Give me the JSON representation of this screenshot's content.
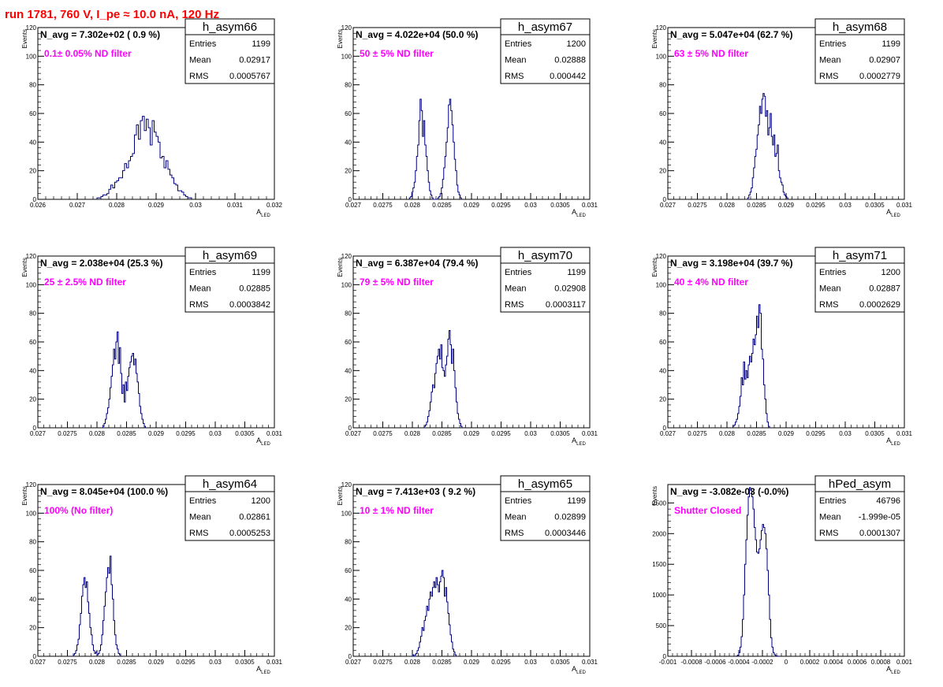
{
  "page": {
    "title": "run 1781,   760 V, I_pe ≈ 10.0 nA, 120 Hz"
  },
  "style": {
    "histogram_color": "#000080",
    "annotation_color": "#ff00ff",
    "title_color": "#ff0000"
  },
  "chart_data": [
    {
      "type": "histogram",
      "name": "h_asym66",
      "navg": "N_avg = 7.302e+02 ( 0.9 %)",
      "filter": "0.1± 0.05% ND filter",
      "stats": {
        "entries": "1199",
        "mean": "0.02917",
        "rms": "0.0005767"
      },
      "xlabel": "A_LED",
      "ylabel": "Events",
      "xlim": [
        0.026,
        0.032
      ],
      "ylim": [
        0,
        120
      ],
      "xticks": [
        0.026,
        0.027,
        0.028,
        0.029,
        0.03,
        0.031,
        0.032
      ],
      "xtick_labels": [
        "0.026",
        "0.027",
        "0.028",
        "0.029",
        "0.03",
        "0.031",
        "0.032"
      ],
      "yticks": [
        0,
        20,
        40,
        60,
        80,
        100,
        120
      ],
      "ytick_labels": [
        "0",
        "20",
        "40",
        "60",
        "80",
        "100",
        "120"
      ],
      "bins": {
        "start": 0.0275,
        "width": 5e-05,
        "counts": [
          1,
          1,
          2,
          3,
          3,
          4,
          7,
          10,
          8,
          12,
          13,
          15,
          15,
          20,
          25,
          22,
          27,
          30,
          32,
          45,
          52,
          42,
          55,
          58,
          48,
          56,
          50,
          38,
          55,
          47,
          44,
          40,
          29,
          30,
          22,
          27,
          21,
          17,
          15,
          11,
          10,
          6,
          6,
          5,
          3,
          2,
          1,
          1
        ]
      }
    },
    {
      "type": "histogram",
      "name": "h_asym67",
      "navg": "N_avg = 4.022e+04 (50.0 %)",
      "filter": "50 ± 5% ND filter",
      "stats": {
        "entries": "1200",
        "mean": "0.02888",
        "rms": "0.000442"
      },
      "xlabel": "A_LED",
      "ylabel": "Events",
      "xlim": [
        0.027,
        0.031
      ],
      "ylim": [
        0,
        120
      ],
      "xticks": [
        0.027,
        0.0275,
        0.028,
        0.0285,
        0.029,
        0.0295,
        0.03,
        0.0305,
        0.031
      ],
      "xtick_labels": [
        "0.027",
        "0.0275",
        "0.028",
        "0.0285",
        "0.029",
        "0.0295",
        "0.03",
        "0.0305",
        "0.031"
      ],
      "yticks": [
        0,
        20,
        40,
        60,
        80,
        100,
        120
      ],
      "ytick_labels": [
        "0",
        "20",
        "40",
        "60",
        "80",
        "100",
        "120"
      ],
      "bins": {
        "start": 0.02795,
        "width": 2e-05,
        "counts": [
          1,
          2,
          5,
          8,
          12,
          20,
          30,
          38,
          55,
          70,
          62,
          44,
          55,
          38,
          30,
          20,
          12,
          6,
          3,
          1,
          0,
          0,
          0,
          0,
          1,
          2,
          4,
          8,
          14,
          22,
          30,
          40,
          50,
          66,
          70,
          62,
          52,
          40,
          28,
          20,
          10,
          5,
          3,
          1
        ]
      }
    },
    {
      "type": "histogram",
      "name": "h_asym68",
      "navg": "N_avg = 5.047e+04 (62.7 %)",
      "filter": "63 ± 5% ND filter",
      "stats": {
        "entries": "1199",
        "mean": "0.02907",
        "rms": "0.0002779"
      },
      "xlabel": "A_LED",
      "ylabel": "Events",
      "xlim": [
        0.027,
        0.031
      ],
      "ylim": [
        0,
        120
      ],
      "xticks": [
        0.027,
        0.0275,
        0.028,
        0.0285,
        0.029,
        0.0295,
        0.03,
        0.0305,
        0.031
      ],
      "xtick_labels": [
        "0.027",
        "0.0275",
        "0.028",
        "0.0285",
        "0.029",
        "0.0295",
        "0.03",
        "0.0305",
        "0.031"
      ],
      "yticks": [
        0,
        20,
        40,
        60,
        80,
        100,
        120
      ],
      "ytick_labels": [
        "0",
        "20",
        "40",
        "60",
        "80",
        "100",
        "120"
      ],
      "bins": {
        "start": 0.02835,
        "width": 2e-05,
        "counts": [
          1,
          3,
          5,
          8,
          15,
          22,
          30,
          35,
          45,
          52,
          65,
          60,
          70,
          74,
          72,
          58,
          62,
          45,
          50,
          60,
          44,
          38,
          45,
          30,
          32,
          38,
          20,
          15,
          12,
          10,
          5,
          3,
          2,
          1
        ]
      }
    },
    {
      "type": "histogram",
      "name": "h_asym69",
      "navg": "N_avg = 2.038e+04 (25.3 %)",
      "filter": "25 ± 2.5% ND filter",
      "stats": {
        "entries": "1199",
        "mean": "0.02885",
        "rms": "0.0003842"
      },
      "xlabel": "A_LED",
      "ylabel": "Events",
      "xlim": [
        0.027,
        0.031
      ],
      "ylim": [
        0,
        120
      ],
      "xticks": [
        0.027,
        0.0275,
        0.028,
        0.0285,
        0.029,
        0.0295,
        0.03,
        0.0305,
        0.031
      ],
      "xtick_labels": [
        "0.027",
        "0.0275",
        "0.028",
        "0.0285",
        "0.029",
        "0.0295",
        "0.03",
        "0.0305",
        "0.031"
      ],
      "yticks": [
        0,
        20,
        40,
        60,
        80,
        100,
        120
      ],
      "ytick_labels": [
        "0",
        "20",
        "40",
        "60",
        "80",
        "100",
        "120"
      ],
      "bins": {
        "start": 0.0281,
        "width": 2e-05,
        "counts": [
          1,
          3,
          6,
          10,
          14,
          20,
          28,
          36,
          44,
          55,
          48,
          60,
          67,
          45,
          56,
          38,
          24,
          30,
          18,
          32,
          26,
          36,
          42,
          46,
          50,
          52,
          44,
          48,
          38,
          32,
          24,
          15,
          10,
          6,
          3,
          1
        ]
      }
    },
    {
      "type": "histogram",
      "name": "h_asym70",
      "navg": "N_avg = 6.387e+04 (79.4 %)",
      "filter": "79 ± 5% ND filter",
      "stats": {
        "entries": "1199",
        "mean": "0.02908",
        "rms": "0.0003117"
      },
      "xlabel": "A_LED",
      "ylabel": "Events",
      "xlim": [
        0.027,
        0.031
      ],
      "ylim": [
        0,
        120
      ],
      "xticks": [
        0.027,
        0.0275,
        0.028,
        0.0285,
        0.029,
        0.0295,
        0.03,
        0.0305,
        0.031
      ],
      "xtick_labels": [
        "0.027",
        "0.0275",
        "0.028",
        "0.0285",
        "0.029",
        "0.0295",
        "0.03",
        "0.0305",
        "0.031"
      ],
      "yticks": [
        0,
        20,
        40,
        60,
        80,
        100,
        120
      ],
      "ytick_labels": [
        "0",
        "20",
        "40",
        "60",
        "80",
        "100",
        "120"
      ],
      "bins": {
        "start": 0.0282,
        "width": 2e-05,
        "counts": [
          1,
          2,
          4,
          8,
          12,
          18,
          25,
          30,
          28,
          38,
          45,
          50,
          55,
          48,
          58,
          42,
          40,
          36,
          44,
          50,
          62,
          68,
          58,
          45,
          55,
          40,
          28,
          18,
          10,
          6,
          3,
          1
        ]
      }
    },
    {
      "type": "histogram",
      "name": "h_asym71",
      "navg": "N_avg = 3.198e+04 (39.7 %)",
      "filter": "40 ± 4% ND filter",
      "stats": {
        "entries": "1200",
        "mean": "0.02887",
        "rms": "0.0002629"
      },
      "xlabel": "A_LED",
      "ylabel": "Events",
      "xlim": [
        0.027,
        0.031
      ],
      "ylim": [
        0,
        120
      ],
      "xticks": [
        0.027,
        0.0275,
        0.028,
        0.0285,
        0.029,
        0.0295,
        0.03,
        0.0305,
        0.031
      ],
      "xtick_labels": [
        "0.027",
        "0.0275",
        "0.028",
        "0.0285",
        "0.029",
        "0.0295",
        "0.03",
        "0.0305",
        "0.031"
      ],
      "yticks": [
        0,
        20,
        40,
        60,
        80,
        100,
        120
      ],
      "ytick_labels": [
        "0",
        "20",
        "40",
        "60",
        "80",
        "100",
        "120"
      ],
      "bins": {
        "start": 0.0281,
        "width": 2e-05,
        "counts": [
          1,
          2,
          4,
          6,
          10,
          15,
          22,
          35,
          30,
          46,
          34,
          40,
          35,
          44,
          50,
          46,
          52,
          62,
          58,
          65,
          78,
          70,
          86,
          80,
          55,
          48,
          30,
          20,
          10,
          4,
          1
        ]
      }
    },
    {
      "type": "histogram",
      "name": "h_asym64",
      "navg": "N_avg = 8.045e+04 (100.0 %)",
      "filter": "100% (No filter)",
      "stats": {
        "entries": "1200",
        "mean": "0.02861",
        "rms": "0.0005253"
      },
      "xlabel": "A_LED",
      "ylabel": "Events",
      "xlim": [
        0.027,
        0.031
      ],
      "ylim": [
        0,
        120
      ],
      "xticks": [
        0.027,
        0.0275,
        0.028,
        0.0285,
        0.029,
        0.0295,
        0.03,
        0.0305,
        0.031
      ],
      "xtick_labels": [
        "0.027",
        "0.0275",
        "0.028",
        "0.0285",
        "0.029",
        "0.0295",
        "0.03",
        "0.0305",
        "0.031"
      ],
      "yticks": [
        0,
        20,
        40,
        60,
        80,
        100,
        120
      ],
      "ytick_labels": [
        "0",
        "20",
        "40",
        "60",
        "80",
        "100",
        "120"
      ],
      "bins": {
        "start": 0.0276,
        "width": 2e-05,
        "counts": [
          1,
          2,
          4,
          8,
          12,
          22,
          30,
          42,
          50,
          55,
          48,
          52,
          38,
          30,
          20,
          15,
          8,
          4,
          2,
          3,
          1,
          2,
          4,
          8,
          15,
          25,
          35,
          45,
          55,
          62,
          58,
          70,
          50,
          40,
          25,
          15,
          8,
          5,
          2,
          1
        ]
      }
    },
    {
      "type": "histogram",
      "name": "h_asym65",
      "navg": "N_avg = 7.413e+03 ( 9.2 %)",
      "filter": "10 ± 1% ND filter",
      "stats": {
        "entries": "1199",
        "mean": "0.02899",
        "rms": "0.0003446"
      },
      "xlabel": "A_LED",
      "ylabel": "Events",
      "xlim": [
        0.027,
        0.031
      ],
      "ylim": [
        0,
        120
      ],
      "xticks": [
        0.027,
        0.0275,
        0.028,
        0.0285,
        0.029,
        0.0295,
        0.03,
        0.0305,
        0.031
      ],
      "xtick_labels": [
        "0.027",
        "0.0275",
        "0.028",
        "0.0285",
        "0.029",
        "0.0295",
        "0.03",
        "0.0305",
        "0.031"
      ],
      "yticks": [
        0,
        20,
        40,
        60,
        80,
        100,
        120
      ],
      "ytick_labels": [
        "0",
        "20",
        "40",
        "60",
        "80",
        "100",
        "120"
      ],
      "bins": {
        "start": 0.028,
        "width": 2e-05,
        "counts": [
          1,
          0,
          1,
          2,
          4,
          6,
          10,
          14,
          20,
          18,
          25,
          28,
          35,
          32,
          40,
          45,
          42,
          48,
          52,
          48,
          55,
          50,
          45,
          52,
          56,
          60,
          55,
          42,
          48,
          38,
          30,
          22,
          15,
          10,
          5,
          3,
          1
        ]
      }
    },
    {
      "type": "histogram",
      "name": "hPed_asym",
      "navg": "N_avg = -3.082e-03 (-0.0%)",
      "filter": "Shutter Closed",
      "stats": {
        "entries": "46796",
        "mean": "-1.999e-05",
        "rms": "0.0001307"
      },
      "xlabel": "A_LED",
      "ylabel": "Events",
      "xlim": [
        -0.001,
        0.001
      ],
      "ylim": [
        0,
        2800
      ],
      "xticks": [
        -0.001,
        -0.0008,
        -0.0006,
        -0.0004,
        -0.0002,
        0,
        0.0002,
        0.0004,
        0.0006,
        0.0008,
        0.001
      ],
      "xtick_labels": [
        "-0.001",
        "-0.0008",
        "-0.0006",
        "-0.0004",
        "-0.0002",
        "0",
        "0.0002",
        "0.0004",
        "0.0006",
        "0.0008",
        "0.001"
      ],
      "yticks": [
        0,
        500,
        1000,
        1500,
        2000,
        2500
      ],
      "ytick_labels": [
        "0",
        "500",
        "1000",
        "1500",
        "2000",
        "2500"
      ],
      "bins": {
        "start": -0.00042,
        "width": 1e-05,
        "counts": [
          5,
          20,
          60,
          150,
          320,
          600,
          1000,
          1500,
          1900,
          2300,
          2600,
          2750,
          2700,
          2600,
          2400,
          2100,
          1900,
          1700,
          1680,
          1750,
          1900,
          2050,
          2150,
          2100,
          2000,
          1750,
          1400,
          1000,
          600,
          300,
          150,
          60,
          25,
          10,
          4,
          2
        ]
      }
    }
  ]
}
